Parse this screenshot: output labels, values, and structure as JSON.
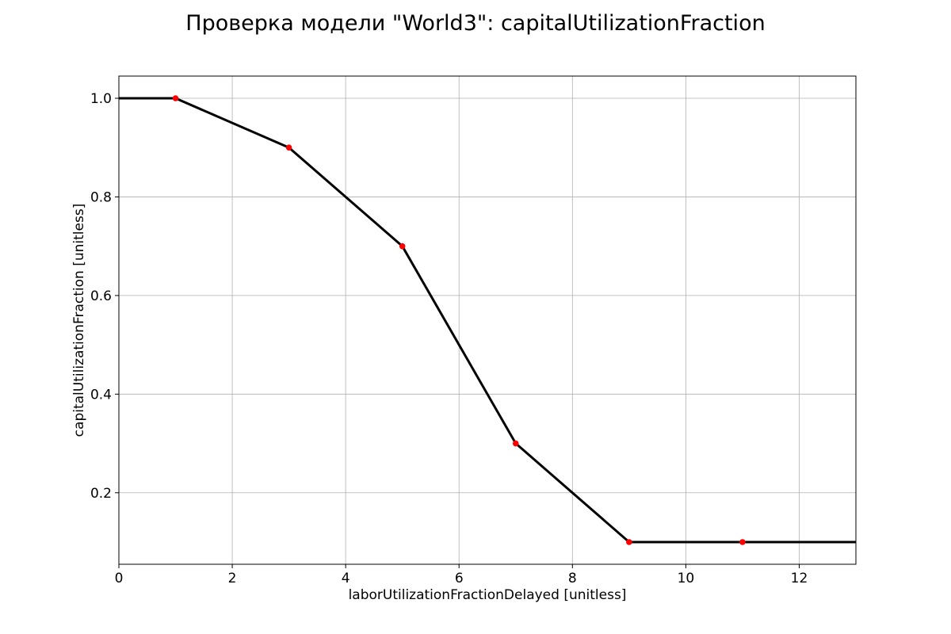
{
  "chart_data": {
    "type": "line",
    "title": "Проверка модели \"World3\": capitalUtilizationFraction",
    "xlabel": "laborUtilizationFractionDelayed [unitless]",
    "ylabel": "capitalUtilizationFraction [unitless]",
    "xlim": [
      0,
      13
    ],
    "ylim": [
      0.055,
      1.045
    ],
    "xticks": [
      0,
      2,
      4,
      6,
      8,
      10,
      12
    ],
    "xtick_labels": [
      "0",
      "2",
      "4",
      "6",
      "8",
      "10",
      "12"
    ],
    "yticks": [
      0.2,
      0.4,
      0.6,
      0.8,
      1.0
    ],
    "ytick_labels": [
      "0.2",
      "0.4",
      "0.6",
      "0.8",
      "1.0"
    ],
    "grid": true,
    "series": [
      {
        "type": "line",
        "color": "#000000",
        "x": [
          0,
          1,
          3,
          5,
          7,
          9,
          11,
          13
        ],
        "y": [
          1.0,
          1.0,
          0.9,
          0.7,
          0.3,
          0.1,
          0.1,
          0.1
        ]
      },
      {
        "type": "scatter",
        "color": "#ff0000",
        "x": [
          1,
          3,
          5,
          7,
          9,
          11
        ],
        "y": [
          1.0,
          0.9,
          0.7,
          0.3,
          0.1,
          0.1
        ]
      }
    ]
  }
}
